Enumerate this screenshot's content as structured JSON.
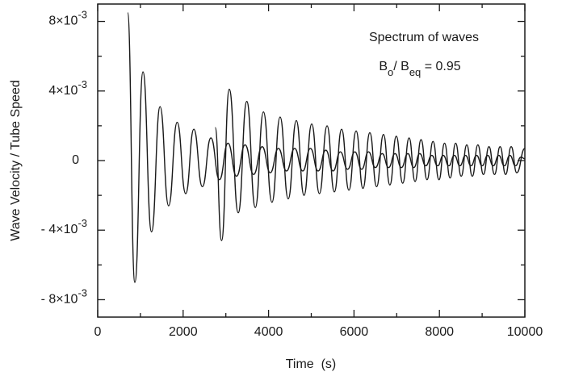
{
  "chart_data": {
    "type": "line",
    "annotation": "Spectrum of waves",
    "ratio_label": [
      "B",
      "o",
      "/ B",
      "eq",
      " = 0.95"
    ],
    "xlabel": "Time  (s)",
    "ylabel": "Wave Velocity / Tube Speed",
    "xlim": [
      0,
      10000
    ],
    "xticks": [
      0,
      2000,
      4000,
      6000,
      8000,
      10000
    ],
    "xminorticks": [
      1000,
      3000,
      5000,
      7000,
      9000
    ],
    "ylim": [
      -0.009,
      0.009
    ],
    "yticks": [
      {
        "value": -0.008,
        "label": "- 8×10",
        "exponent": "-3"
      },
      {
        "value": -0.004,
        "label": "- 4×10",
        "exponent": "-3"
      },
      0,
      {
        "value": 0.004,
        "label": "4×10",
        "exponent": "-3"
      },
      {
        "value": 0.008,
        "label": "8×10",
        "exponent": "-3"
      }
    ],
    "yminorticks": [
      -0.006,
      -0.002,
      0.002,
      0.006
    ],
    "series": [
      {
        "color": "#1a1a1a",
        "x": [
          700,
          870,
          1060,
          1260,
          1460,
          1660,
          1860,
          2060,
          2250,
          2450,
          2650,
          2850,
          3050,
          3250,
          3450,
          3650,
          3850,
          4040,
          4230,
          4420,
          4610,
          4800,
          4980,
          5160,
          5340,
          5510,
          5680,
          5850,
          6020,
          6180,
          6340,
          6500,
          6660,
          6810,
          6960,
          7110,
          7260,
          7400,
          7540,
          7680,
          7820,
          7960,
          8090,
          8220,
          8350,
          8480,
          8610,
          8740,
          8870,
          9000,
          9130,
          9260,
          9390,
          9520,
          9650,
          9780,
          9910,
          10000
        ],
        "values": [
          0.0085,
          -0.007,
          0.0051,
          -0.0041,
          0.0031,
          -0.0026,
          0.0022,
          -0.0019,
          0.0018,
          -0.0015,
          0.0013,
          -0.0011,
          0.001,
          -0.0009,
          0.0009,
          -0.0008,
          0.0008,
          -0.0007,
          0.0007,
          -0.0006,
          0.0007,
          -0.0006,
          0.0007,
          -0.0006,
          0.0006,
          -0.0006,
          0.0005,
          -0.0005,
          0.0005,
          -0.0005,
          0.0005,
          -0.0004,
          0.0004,
          -0.0004,
          0.0004,
          -0.0004,
          0.0004,
          -0.0004,
          0.0004,
          -0.0003,
          0.0003,
          -0.0003,
          0.0003,
          -0.0003,
          0.0003,
          -0.0003,
          0.0003,
          -0.0003,
          0.0003,
          -0.0003,
          0.0003,
          -0.0003,
          0.0003,
          -0.0003,
          0.0003,
          -0.0003,
          0.0002,
          0.0001
        ]
      },
      {
        "color": "#1a1a1a",
        "x": [
          2750,
          2900,
          3080,
          3290,
          3490,
          3690,
          3880,
          4080,
          4270,
          4460,
          4650,
          4830,
          5010,
          5190,
          5370,
          5540,
          5710,
          5880,
          6050,
          6210,
          6370,
          6530,
          6690,
          6840,
          6990,
          7140,
          7290,
          7430,
          7570,
          7710,
          7850,
          7990,
          8120,
          8250,
          8380,
          8510,
          8640,
          8770,
          8900,
          9030,
          9160,
          9290,
          9420,
          9550,
          9680,
          9810,
          10000
        ],
        "values": [
          0.0019,
          -0.0046,
          0.0041,
          -0.003,
          0.0034,
          -0.0027,
          0.0028,
          -0.0024,
          0.0025,
          -0.0022,
          0.0023,
          -0.002,
          0.0021,
          -0.0019,
          0.002,
          -0.0018,
          0.0018,
          -0.0017,
          0.0017,
          -0.0016,
          0.0016,
          -0.0015,
          0.0015,
          -0.0014,
          0.0014,
          -0.0013,
          0.0013,
          -0.0012,
          0.0012,
          -0.0011,
          0.0011,
          -0.0011,
          0.001,
          -0.001,
          0.001,
          -0.0009,
          0.0009,
          -0.0009,
          0.0009,
          -0.0008,
          0.0008,
          -0.0008,
          0.0008,
          -0.0008,
          0.0008,
          -0.0007,
          0.0007
        ]
      }
    ]
  }
}
